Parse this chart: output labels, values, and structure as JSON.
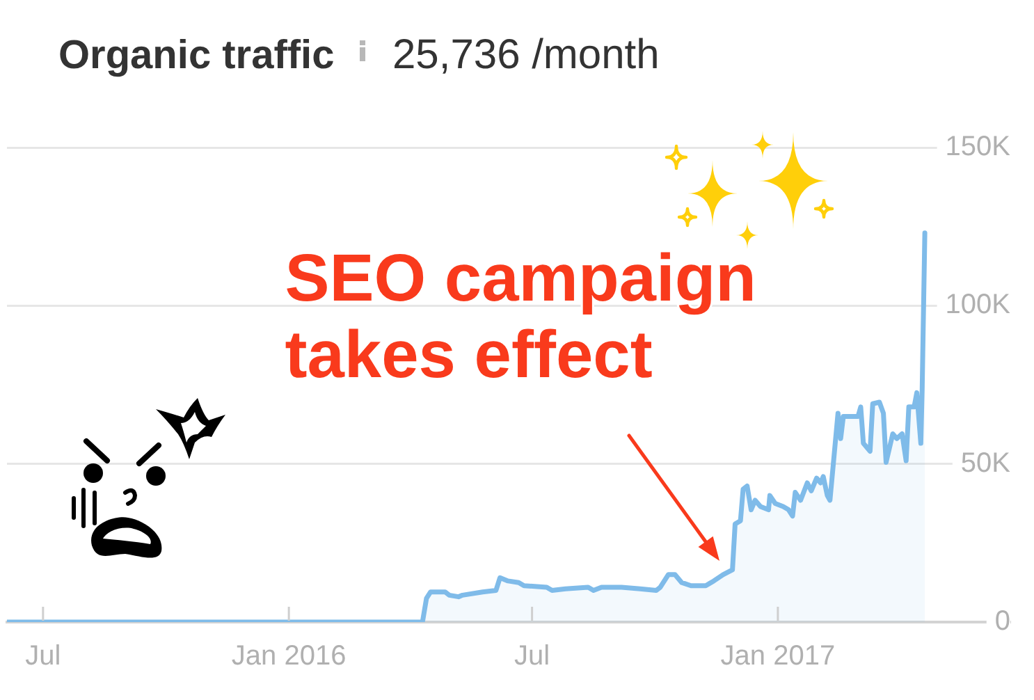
{
  "chart_data": {
    "type": "area",
    "title": "Organic traffic",
    "subtitle": "25,736 /month",
    "x": [
      "2015-06-04",
      "2015-10-01",
      "2016-02-01",
      "2016-04-10",
      "2016-04-13",
      "2016-04-16",
      "2016-04-27",
      "2016-04-30",
      "2016-05-07",
      "2016-05-10",
      "2016-05-25",
      "2016-06-04",
      "2016-06-07",
      "2016-06-13",
      "2016-06-21",
      "2016-06-25",
      "2016-07-12",
      "2016-07-16",
      "2016-07-26",
      "2016-08-12",
      "2016-08-16",
      "2016-08-22",
      "2016-09-06",
      "2016-09-20",
      "2016-10-02",
      "2016-10-05",
      "2016-10-11",
      "2016-10-16",
      "2016-10-21",
      "2016-10-28",
      "2016-11-08",
      "2016-11-14",
      "2016-11-21",
      "2016-11-28",
      "2016-11-30",
      "2016-12-04",
      "2016-12-06",
      "2016-12-09",
      "2016-12-12",
      "2016-12-15",
      "2016-12-19",
      "2016-12-25",
      "2016-12-26",
      "2016-12-30",
      "2017-01-05",
      "2017-01-09",
      "2017-01-12",
      "2017-01-14",
      "2017-01-18",
      "2017-01-23",
      "2017-01-26",
      "2017-01-30",
      "2017-02-02",
      "2017-02-04",
      "2017-02-07",
      "2017-02-09",
      "2017-02-15",
      "2017-02-17",
      "2017-02-19",
      "2017-03-02",
      "2017-03-04",
      "2017-03-06",
      "2017-03-11",
      "2017-03-13",
      "2017-03-18",
      "2017-03-21",
      "2017-03-23",
      "2017-03-28",
      "2017-03-31",
      "2017-04-04",
      "2017-04-07",
      "2017-04-09",
      "2017-04-13",
      "2017-04-15",
      "2017-04-18",
      "2017-04-19",
      "2017-04-21"
    ],
    "values": [
      0,
      0,
      0,
      0,
      7500,
      9500,
      9500,
      8500,
      8000,
      8500,
      9500,
      10000,
      14000,
      13000,
      12500,
      11500,
      11000,
      10000,
      10500,
      11000,
      10000,
      11000,
      11000,
      10500,
      10000,
      11000,
      15000,
      15000,
      12500,
      11500,
      11500,
      13000,
      15000,
      16500,
      31000,
      32000,
      42000,
      43000,
      35500,
      38500,
      36500,
      35500,
      40000,
      37500,
      36500,
      35500,
      33500,
      41000,
      38500,
      44000,
      41500,
      45500,
      44000,
      46000,
      40000,
      38500,
      66000,
      58000,
      65000,
      65000,
      68000,
      56500,
      54000,
      69000,
      69500,
      66000,
      50500,
      59500,
      58000,
      59500,
      51000,
      68000,
      68000,
      72500,
      56500,
      73500,
      123000
    ],
    "color": "#7fbbe9",
    "xlim": [
      "2015-06-04",
      "2017-06-24"
    ],
    "xticks": [
      {
        "value": "2015-07-01",
        "label": "Jul"
      },
      {
        "value": "2016-01-01",
        "label": "Jan 2016"
      },
      {
        "value": "2016-07-01",
        "label": "Jul"
      },
      {
        "value": "2017-01-01",
        "label": "Jan 2017"
      }
    ],
    "ylim": [
      0,
      150000
    ],
    "yticks": [
      0,
      {
        "value": 50000,
        "label": "50K"
      },
      {
        "value": 100000,
        "label": "100K"
      },
      {
        "value": 150000,
        "label": "150K"
      }
    ],
    "grid": "y",
    "annotations": [
      {
        "text": "SEO campaign takes effect",
        "x": "2016-11-18",
        "y": 14000
      }
    ]
  }
}
